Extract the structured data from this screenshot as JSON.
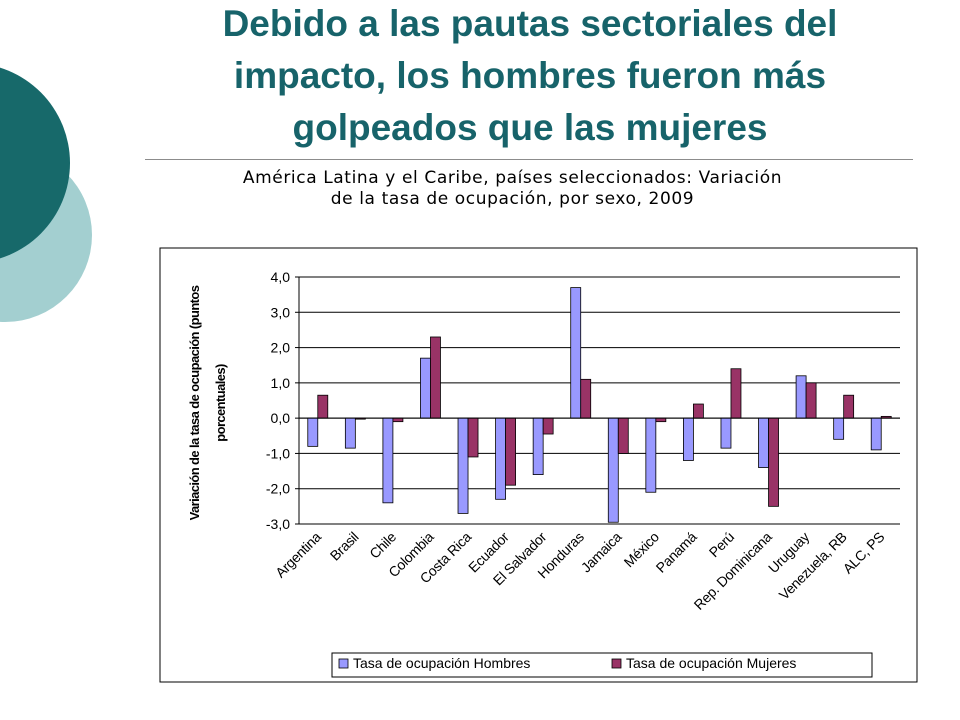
{
  "slide": {
    "title_lines": [
      "Debido a las pautas sectoriales del",
      "impacto, los hombres fueron más",
      "golpeados que las mujeres"
    ]
  },
  "colors": {
    "title": "#17636a",
    "circle_dark": "#17696a",
    "circle_light": "#a3cfd0",
    "hombres": "#9999ff",
    "mujeres": "#993366"
  },
  "chart_data": {
    "type": "bar",
    "title_lines": [
      "América Latina y el Caribe, países seleccionados: Variación",
      "de la tasa de ocupación, por sexo, 2009"
    ],
    "ylabel_lines": [
      "Variación de la tasa de ocupación (puntos",
      "porcentuales)"
    ],
    "xlabel": "",
    "ylim": [
      -3.0,
      4.0
    ],
    "yticks": [
      "4,0",
      "3,0",
      "2,0",
      "1,0",
      "0,0",
      "-1,0",
      "-2,0",
      "-3,0"
    ],
    "grid": true,
    "legend_position": "bottom",
    "categories": [
      "Argentina",
      "Brasil",
      "Chile",
      "Colombia",
      "Costa Rica",
      "Ecuador",
      "El Salvador",
      "Honduras",
      "Jamaica",
      "México",
      "Panamá",
      "Perú",
      "Rep. Dominicana",
      "Uruguay",
      "Venezuela, RB",
      "ALC, PS"
    ],
    "series": [
      {
        "name": "Tasa de ocupación Hombres",
        "values": [
          -0.8,
          -0.85,
          -2.4,
          1.7,
          -2.7,
          -2.3,
          -1.6,
          3.7,
          -2.95,
          -2.1,
          -1.2,
          -0.85,
          -1.4,
          1.2,
          -0.6,
          -0.9
        ]
      },
      {
        "name": "Tasa de ocupación Mujeres",
        "values": [
          0.65,
          0.0,
          -0.1,
          2.3,
          -1.1,
          -1.9,
          -0.45,
          1.1,
          -1.0,
          -0.1,
          0.4,
          1.4,
          -2.5,
          1.0,
          0.65,
          0.05
        ]
      }
    ]
  }
}
